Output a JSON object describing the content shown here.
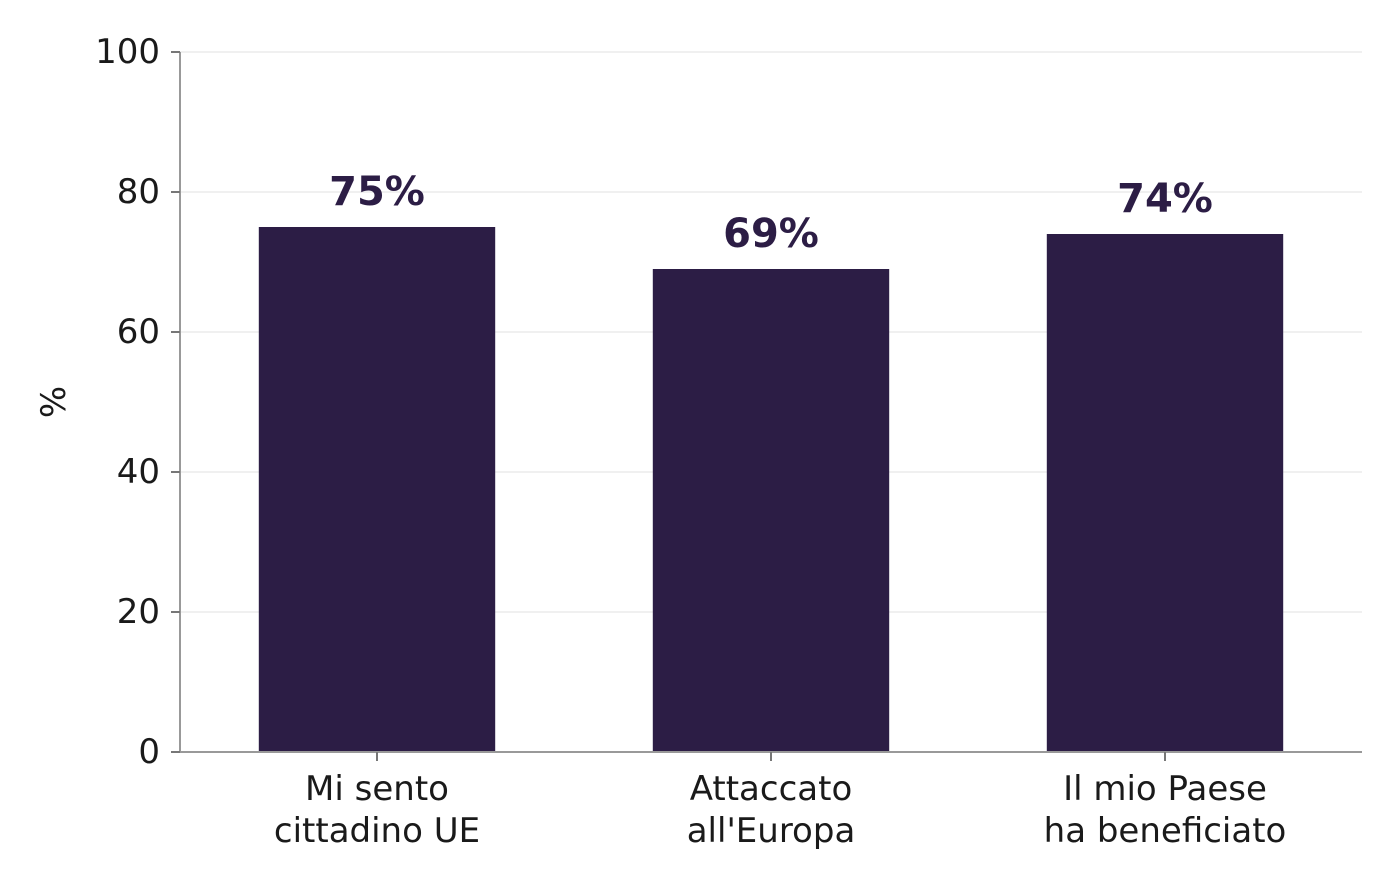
{
  "chart_data": {
    "type": "bar",
    "categories": [
      [
        "Mi sento",
        "cittadino UE"
      ],
      [
        "Attaccato",
        "all'Europa"
      ],
      [
        "Il mio Paese",
        "ha beneficiato"
      ]
    ],
    "values": [
      75,
      69,
      74
    ],
    "data_labels": [
      "75%",
      "69%",
      "74%"
    ],
    "title": "",
    "xlabel": "",
    "ylabel": "%",
    "ylim": [
      0,
      100
    ],
    "yticks": [
      0,
      20,
      40,
      60,
      80,
      100
    ],
    "grid": "horizontal",
    "bar_color": "#2c1d45",
    "label_color": "#2c1d45"
  }
}
